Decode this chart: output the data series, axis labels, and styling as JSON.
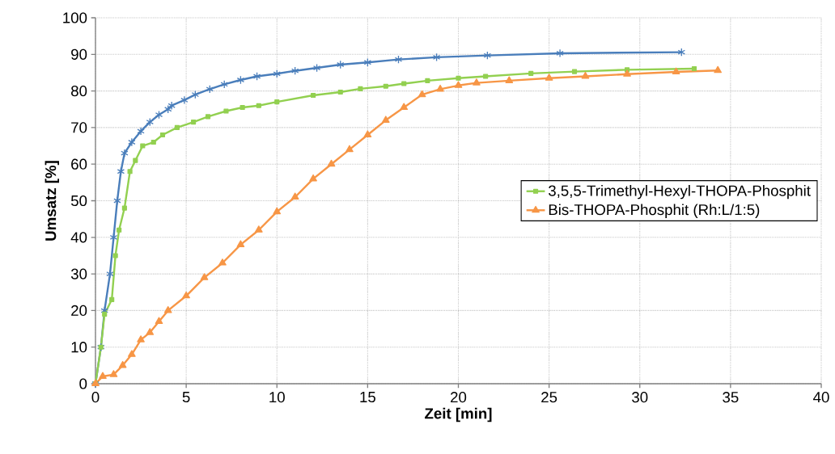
{
  "chart_data": {
    "type": "line",
    "xlabel": "Zeit [min]",
    "ylabel": "Umsatz [%]",
    "xlim": [
      0,
      40
    ],
    "ylim": [
      0,
      100
    ],
    "xticks": [
      0,
      5,
      10,
      15,
      20,
      25,
      30,
      35,
      40
    ],
    "yticks": [
      0,
      10,
      20,
      30,
      40,
      50,
      60,
      70,
      80,
      90,
      100
    ],
    "grid": true,
    "legend": "right",
    "line_style": "solid",
    "series": [
      {
        "color": "#4a7ebb",
        "marker": "cross",
        "x": [
          0,
          0.3,
          0.5,
          0.8,
          1.0,
          1.2,
          1.4,
          1.6,
          2,
          2.5,
          3,
          3.5,
          4,
          4.2,
          4.9,
          5.5,
          6.3,
          7.1,
          8,
          8.9,
          10,
          11,
          12.2,
          13.5,
          15,
          16.7,
          18.8,
          21.6,
          25.6,
          32.3
        ],
        "values": [
          0,
          10,
          20,
          30,
          40,
          50,
          58,
          63,
          66,
          69,
          71.5,
          73.5,
          75,
          76,
          77.5,
          79,
          80.5,
          81.8,
          83,
          84,
          84.7,
          85.5,
          86.3,
          87.2,
          87.8,
          88.6,
          89.2,
          89.7,
          90.3,
          90.6
        ]
      },
      {
        "name": "3,5,5-Trimethyl-Hexyl-THOPA-Phosphit",
        "color": "#92d050",
        "marker": "square",
        "x": [
          0,
          0.3,
          0.5,
          0.9,
          1.1,
          1.3,
          1.6,
          1.9,
          2.2,
          2.6,
          3.2,
          3.7,
          4.5,
          5.4,
          6.2,
          7.2,
          8.1,
          9,
          10,
          12,
          13.5,
          14.6,
          16,
          17,
          18.3,
          20,
          21.5,
          24,
          26.4,
          29.3,
          33
        ],
        "values": [
          0,
          10,
          19,
          23,
          35,
          42,
          48,
          58,
          61,
          65,
          66,
          68,
          70,
          71.5,
          73,
          74.5,
          75.5,
          76,
          77,
          78.8,
          79.7,
          80.6,
          81.3,
          82,
          82.8,
          83.5,
          84,
          84.8,
          85.3,
          85.8,
          86.1
        ]
      },
      {
        "name": "Bis-THOPA-Phosphit (Rh:L/1:5)",
        "color": "#f79646",
        "marker": "triangle",
        "x": [
          0,
          0.4,
          1,
          1.5,
          2,
          2.5,
          3,
          3.5,
          4,
          5,
          6,
          7,
          8,
          9,
          10,
          11,
          12,
          13,
          14,
          15,
          16,
          17,
          18,
          19,
          20,
          21,
          22.8,
          25,
          27,
          29.3,
          32,
          34.3
        ],
        "values": [
          0,
          2,
          2.5,
          5,
          8,
          12,
          14,
          17,
          20,
          24,
          29,
          33,
          38,
          42,
          47,
          51,
          56,
          60,
          64,
          68,
          72,
          75.5,
          79,
          80.5,
          81.5,
          82.2,
          82.8,
          83.5,
          84,
          84.6,
          85.2,
          85.6
        ]
      }
    ]
  }
}
